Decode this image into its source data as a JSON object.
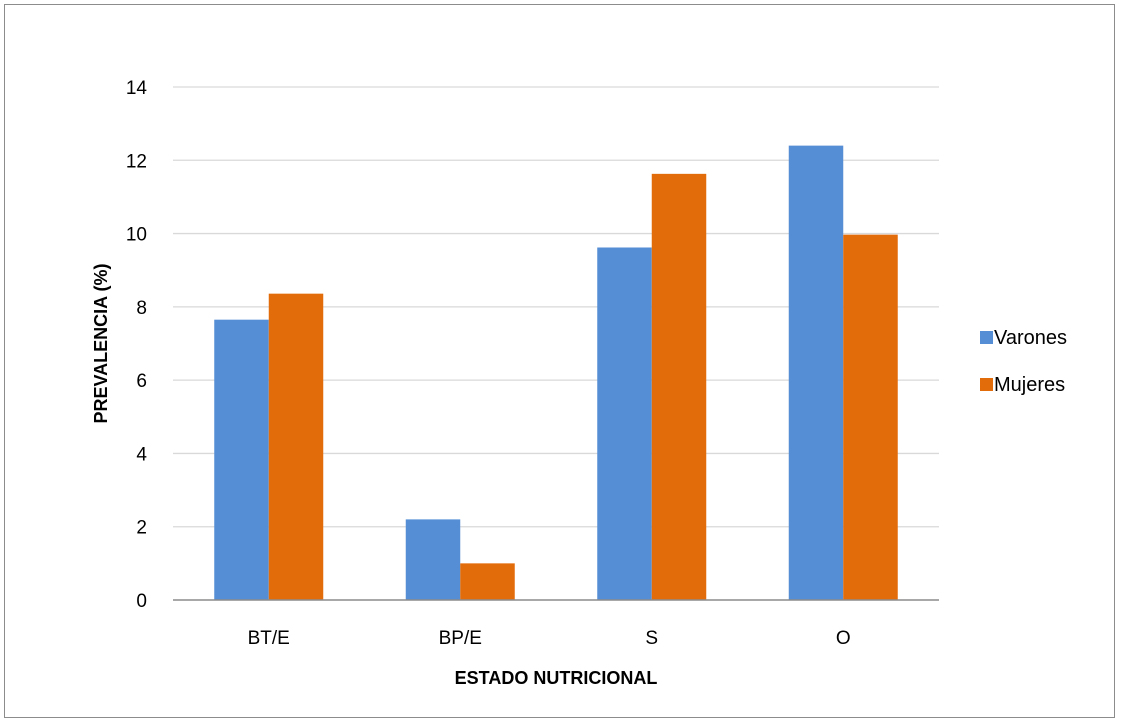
{
  "chart_data": {
    "type": "bar",
    "title": "",
    "xlabel": "ESTADO NUTRICIONAL",
    "ylabel": "PREVALENCIA (%)",
    "categories": [
      "BT/E",
      "BP/E",
      "S",
      "O"
    ],
    "series": [
      {
        "name": "Varones",
        "values": [
          7.65,
          2.2,
          9.62,
          12.4
        ],
        "color": "#558ed5"
      },
      {
        "name": "Mujeres",
        "values": [
          8.36,
          1.0,
          11.63,
          9.97
        ],
        "color": "#e36c0a"
      }
    ],
    "ylim": [
      0,
      14
    ],
    "yticks": [
      0,
      2,
      4,
      6,
      8,
      10,
      12,
      14
    ],
    "grid": true,
    "legend_position": "right"
  }
}
